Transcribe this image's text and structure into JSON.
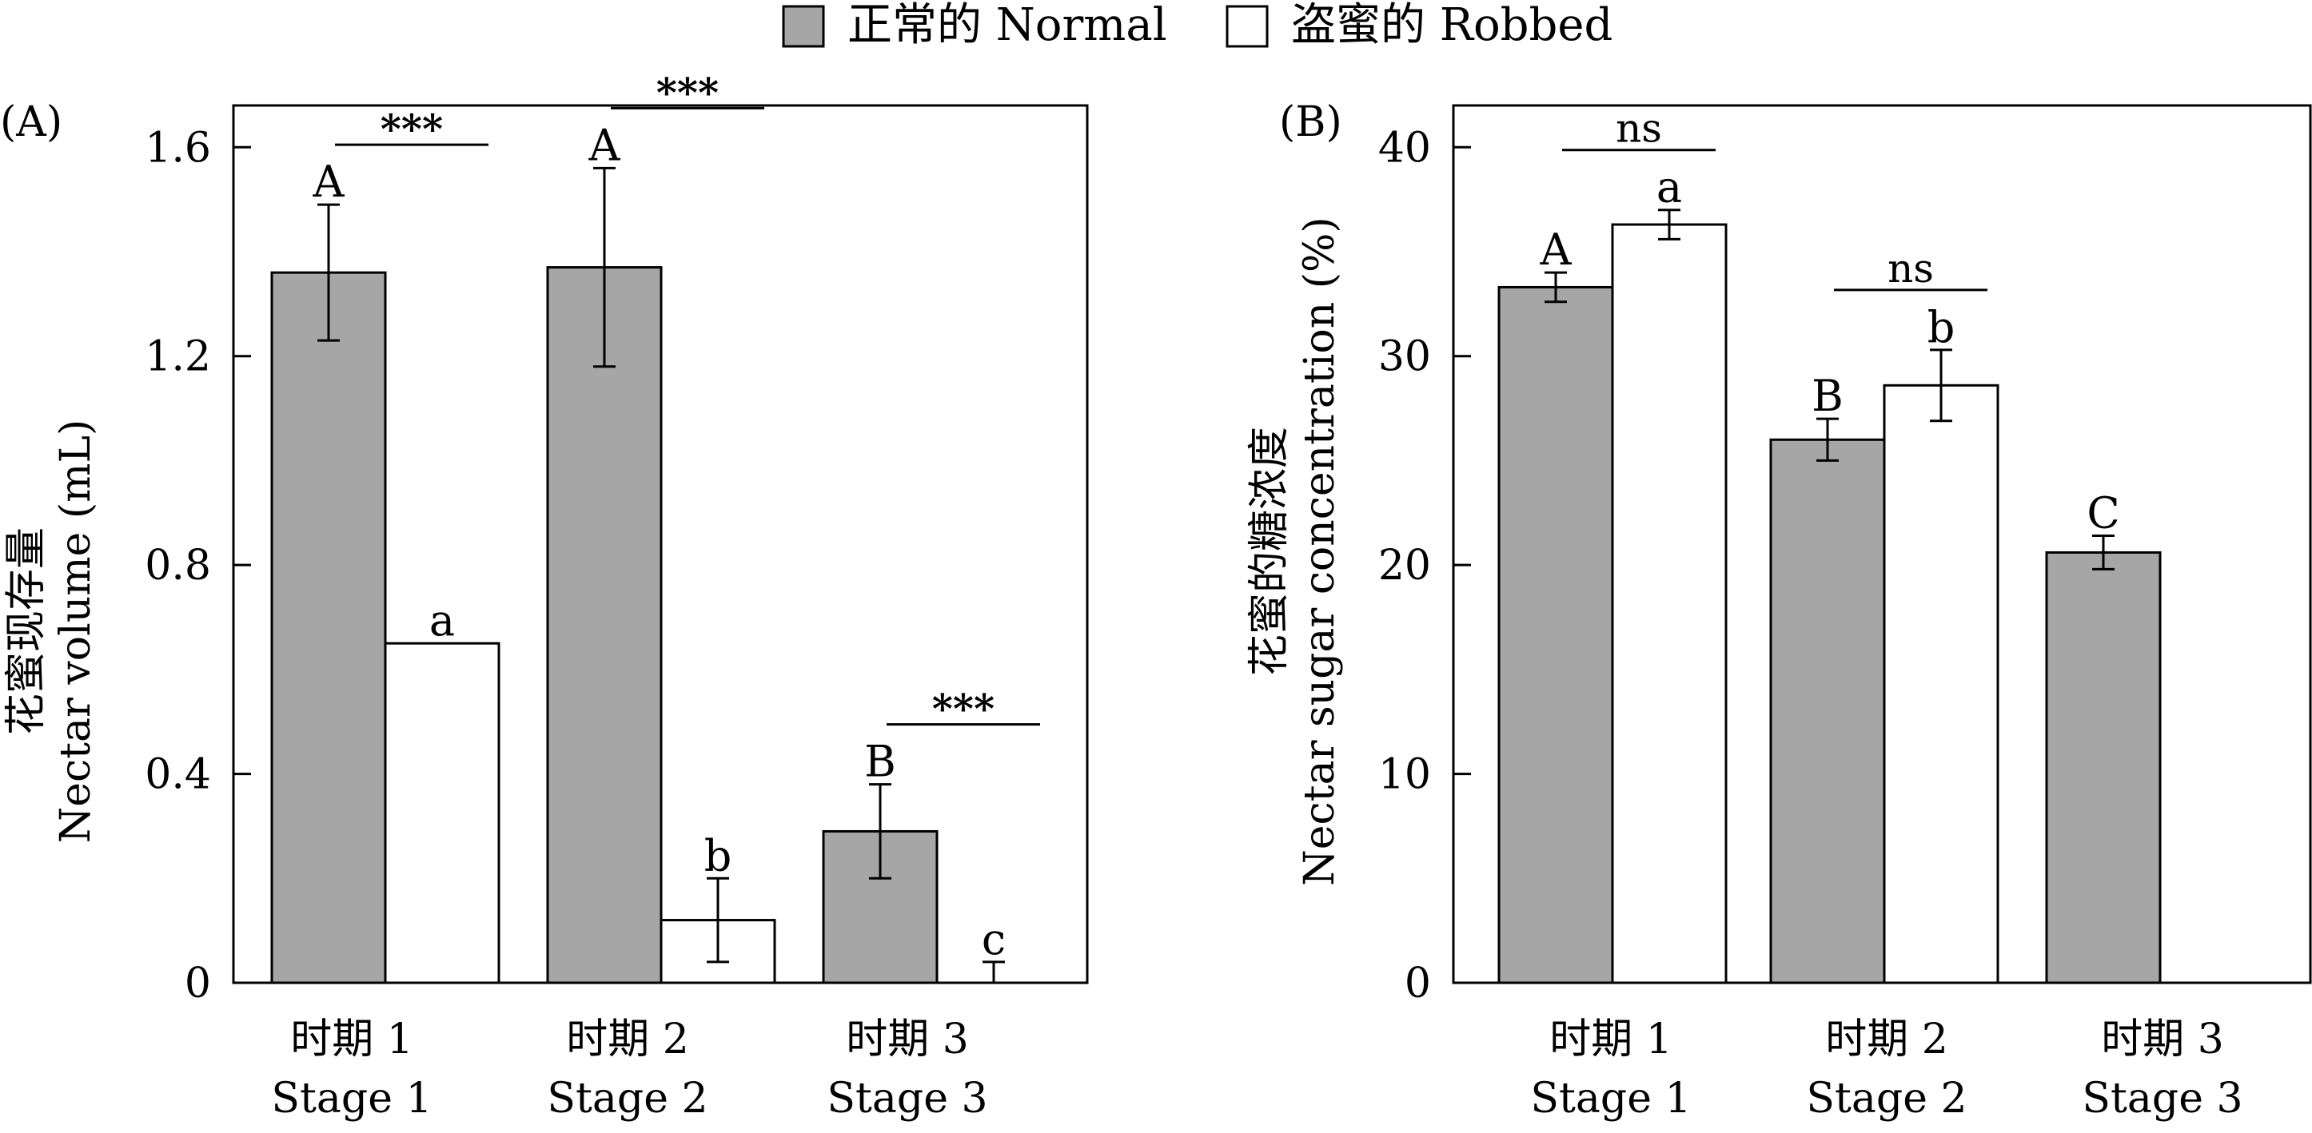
{
  "legend": {
    "normal": "正常的 Normal",
    "robbed": "盗蜜的 Robbed"
  },
  "colors": {
    "normal_fill": "#a6a6a6",
    "robbed_fill": "#ffffff",
    "stroke": "#000000"
  },
  "chart_data": [
    {
      "type": "bar",
      "panel_label": "(A)",
      "ylabel_cn": "花蜜现存量",
      "ylabel_en": "Nectar volume (mL)",
      "ylim": [
        0,
        1.68
      ],
      "yticks": [
        0,
        0.4,
        0.8,
        1.2,
        1.6
      ],
      "ytick_labels": [
        "0",
        "0.4",
        "0.8",
        "1.2",
        "1.6"
      ],
      "categories": [
        {
          "cn": "时期 1",
          "en": "Stage 1"
        },
        {
          "cn": "时期 2",
          "en": "Stage 2"
        },
        {
          "cn": "时期 3",
          "en": "Stage 3"
        }
      ],
      "series": [
        {
          "name": "正常的 Normal",
          "values": [
            1.36,
            1.37,
            0.29
          ],
          "errors": [
            0.13,
            0.19,
            0.09
          ],
          "letters": [
            "A",
            "A",
            "B"
          ]
        },
        {
          "name": "盗蜜的 Robbed",
          "values": [
            0.65,
            0.12,
            0.0
          ],
          "errors": [
            0.0,
            0.08,
            0.04
          ],
          "letters": [
            "a",
            "b",
            "c"
          ]
        }
      ],
      "significance": [
        "***",
        "***",
        "***"
      ]
    },
    {
      "type": "bar",
      "panel_label": "(B)",
      "ylabel_cn": "花蜜的糖浓度",
      "ylabel_en": "Nectar sugar concentration (%)",
      "ylim": [
        0,
        42
      ],
      "yticks": [
        0,
        10,
        20,
        30,
        40
      ],
      "ytick_labels": [
        "0",
        "10",
        "20",
        "30",
        "40"
      ],
      "categories": [
        {
          "cn": "时期 1",
          "en": "Stage 1"
        },
        {
          "cn": "时期 2",
          "en": "Stage 2"
        },
        {
          "cn": "时期 3",
          "en": "Stage 3"
        }
      ],
      "series": [
        {
          "name": "正常的 Normal",
          "values": [
            33.3,
            26.0,
            20.6
          ],
          "errors": [
            0.7,
            1.0,
            0.8
          ],
          "letters": [
            "A",
            "B",
            "C"
          ]
        },
        {
          "name": "盗蜜的 Robbed",
          "values": [
            36.3,
            28.6,
            null
          ],
          "errors": [
            0.7,
            1.7,
            null
          ],
          "letters": [
            "a",
            "b",
            ""
          ]
        }
      ],
      "significance": [
        "ns",
        "ns",
        ""
      ]
    }
  ]
}
